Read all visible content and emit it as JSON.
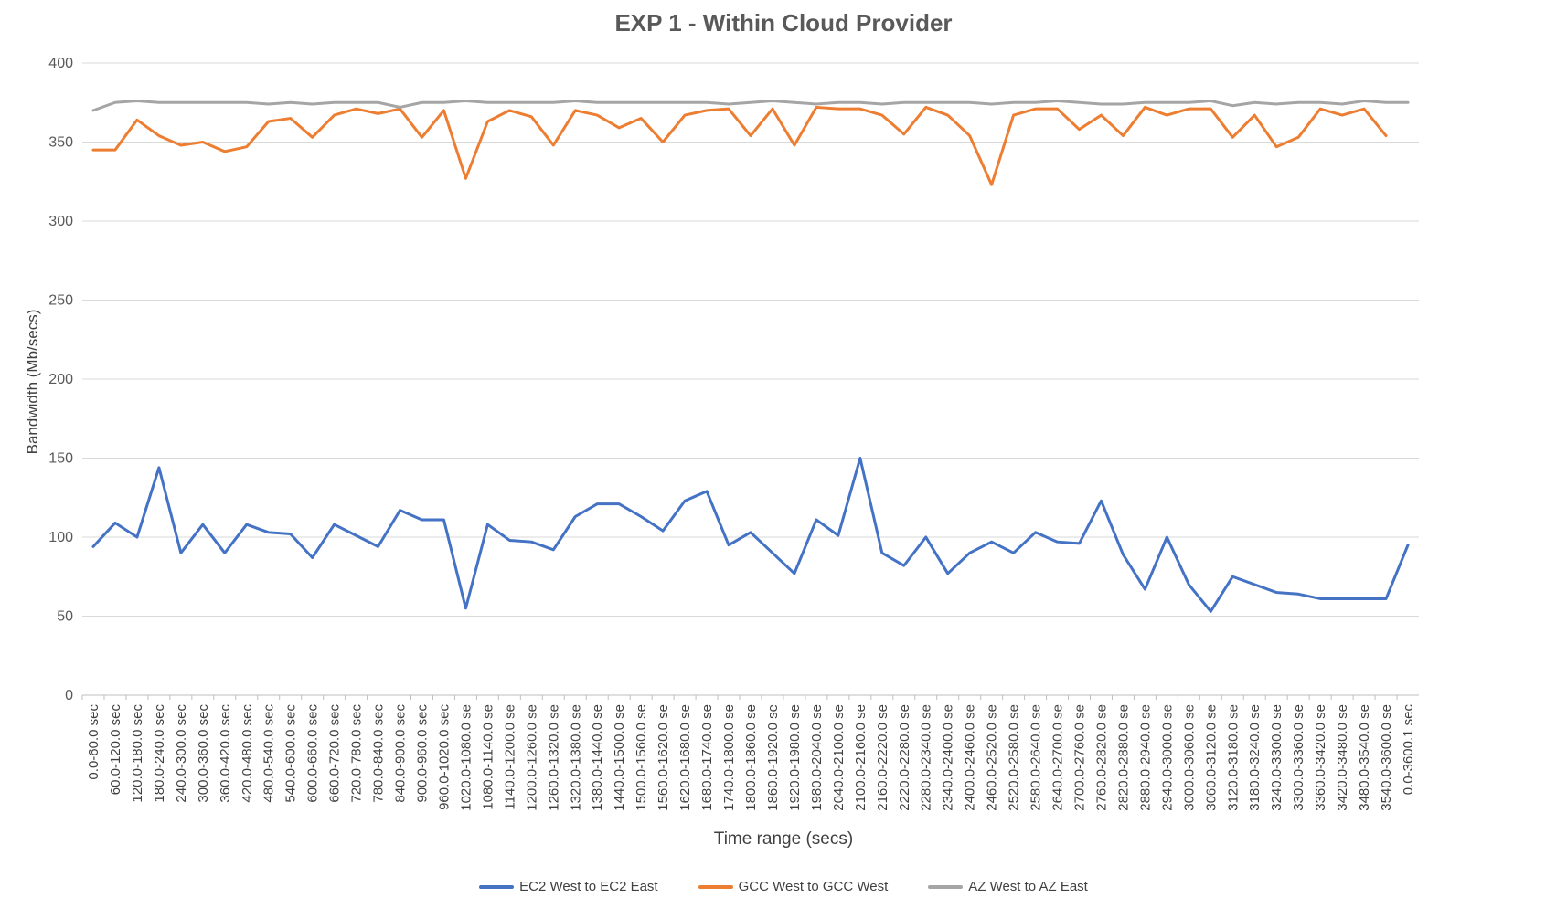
{
  "chart_data": {
    "type": "line",
    "title": "EXP 1 - Within Cloud Provider",
    "xlabel": "Time range (secs)",
    "ylabel": "Bandwidth (Mb/secs)",
    "ylim": [
      0,
      400
    ],
    "yticks": [
      0,
      50,
      100,
      150,
      200,
      250,
      300,
      350,
      400
    ],
    "grid": true,
    "legend_position": "bottom",
    "categories": [
      "0.0-60.0 sec",
      "60.0-120.0 sec",
      "120.0-180.0 sec",
      "180.0-240.0 sec",
      "240.0-300.0 sec",
      "300.0-360.0 sec",
      "360.0-420.0 sec",
      "420.0-480.0 sec",
      "480.0-540.0 sec",
      "540.0-600.0 sec",
      "600.0-660.0 sec",
      "660.0-720.0 sec",
      "720.0-780.0 sec",
      "780.0-840.0 sec",
      "840.0-900.0 sec",
      "900.0-960.0 sec",
      "960.0-1020.0 sec",
      "1020.0-1080.0 se",
      "1080.0-1140.0 se",
      "1140.0-1200.0 se",
      "1200.0-1260.0 se",
      "1260.0-1320.0 se",
      "1320.0-1380.0 se",
      "1380.0-1440.0 se",
      "1440.0-1500.0 se",
      "1500.0-1560.0 se",
      "1560.0-1620.0 se",
      "1620.0-1680.0 se",
      "1680.0-1740.0 se",
      "1740.0-1800.0 se",
      "1800.0-1860.0 se",
      "1860.0-1920.0 se",
      "1920.0-1980.0 se",
      "1980.0-2040.0 se",
      "2040.0-2100.0 se",
      "2100.0-2160.0 se",
      "2160.0-2220.0 se",
      "2220.0-2280.0 se",
      "2280.0-2340.0 se",
      "2340.0-2400.0 se",
      "2400.0-2460.0 se",
      "2460.0-2520.0 se",
      "2520.0-2580.0 se",
      "2580.0-2640.0 se",
      "2640.0-2700.0 se",
      "2700.0-2760.0 se",
      "2760.0-2820.0 se",
      "2820.0-2880.0 se",
      "2880.0-2940.0 se",
      "2940.0-3000.0 se",
      "3000.0-3060.0 se",
      "3060.0-3120.0 se",
      "3120.0-3180.0 se",
      "3180.0-3240.0 se",
      "3240.0-3300.0 se",
      "3300.0-3360.0 se",
      "3360.0-3420.0 se",
      "3420.0-3480.0 se",
      "3480.0-3540.0 se",
      "3540.0-3600.0 se",
      "0.0-3600.1 sec"
    ],
    "series": [
      {
        "name": "EC2 West to EC2 East",
        "color": "#4472C4",
        "values": [
          94,
          109,
          100,
          144,
          90,
          108,
          90,
          108,
          103,
          102,
          87,
          108,
          101,
          94,
          117,
          111,
          111,
          55,
          108,
          98,
          97,
          92,
          113,
          121,
          121,
          113,
          104,
          123,
          129,
          95,
          103,
          90,
          77,
          111,
          101,
          150,
          90,
          82,
          100,
          77,
          90,
          97,
          90,
          103,
          97,
          96,
          123,
          89,
          67,
          100,
          70,
          53,
          75,
          70,
          65,
          64,
          61,
          61,
          61,
          61,
          95
        ]
      },
      {
        "name": "GCC West to GCC West",
        "color": "#ED7D31",
        "values": [
          345,
          345,
          364,
          354,
          348,
          350,
          344,
          347,
          363,
          365,
          353,
          367,
          371,
          368,
          371,
          353,
          370,
          327,
          363,
          370,
          366,
          348,
          370,
          367,
          359,
          365,
          350,
          367,
          370,
          371,
          354,
          371,
          348,
          372,
          371,
          371,
          367,
          355,
          372,
          367,
          354,
          323,
          367,
          371,
          371,
          358,
          367,
          354,
          372,
          367,
          371,
          371,
          353,
          367,
          347,
          353,
          371,
          367,
          371,
          354,
          null
        ]
      },
      {
        "name": "AZ West to AZ East",
        "color": "#A5A5A5",
        "values": [
          370,
          375,
          376,
          375,
          375,
          375,
          375,
          375,
          374,
          375,
          374,
          375,
          375,
          375,
          372,
          375,
          375,
          376,
          375,
          375,
          375,
          375,
          376,
          375,
          375,
          375,
          375,
          375,
          375,
          374,
          375,
          376,
          375,
          374,
          375,
          375,
          374,
          375,
          375,
          375,
          375,
          374,
          375,
          375,
          376,
          375,
          374,
          374,
          375,
          375,
          375,
          376,
          373,
          375,
          374,
          375,
          375,
          374,
          376,
          375,
          375
        ]
      }
    ]
  }
}
